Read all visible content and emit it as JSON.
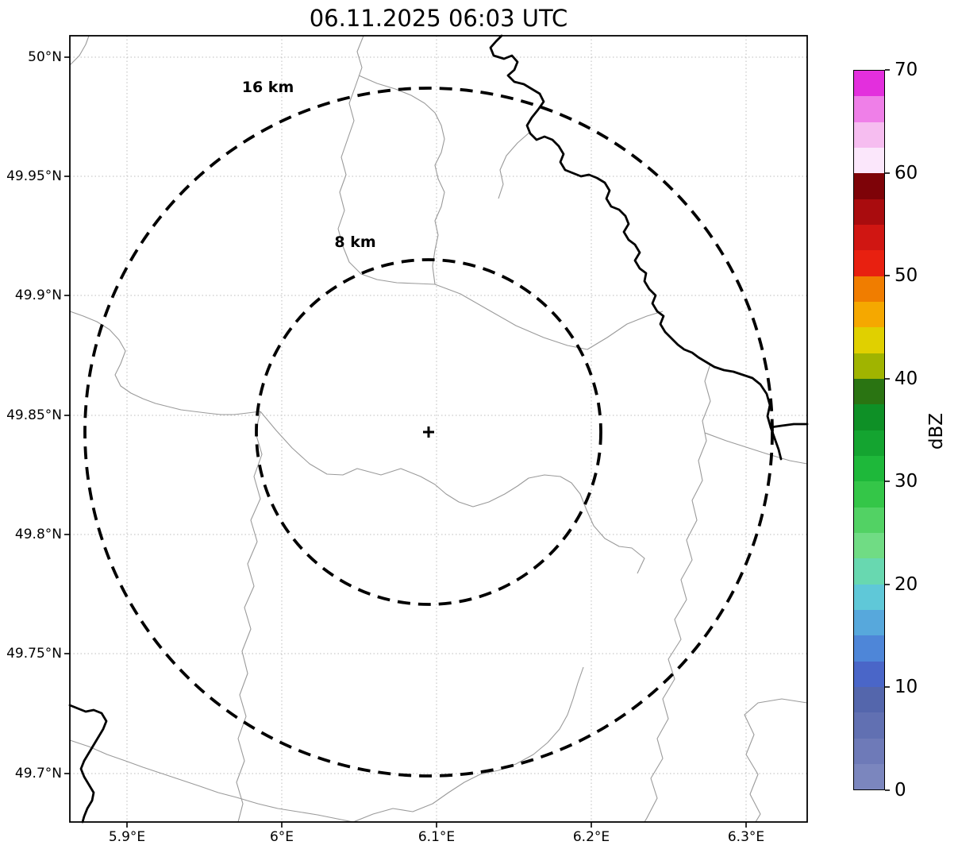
{
  "title": "06.11.2025 06:03 UTC",
  "axes": {
    "x_ticks": [
      "5.9°E",
      "6°E",
      "6.1°E",
      "6.2°E",
      "6.3°E"
    ],
    "y_ticks": [
      "50°N",
      "49.95°N",
      "49.9°N",
      "49.85°N",
      "49.8°N",
      "49.75°N",
      "49.7°N"
    ]
  },
  "range_rings": [
    {
      "label": "16 km"
    },
    {
      "label": "8 km"
    }
  ],
  "marker": {
    "symbol": "+"
  },
  "colorbar": {
    "label": "dBZ",
    "ticks": [
      "0",
      "10",
      "20",
      "30",
      "40",
      "50",
      "60",
      "70"
    ],
    "colors_bottom_to_top": [
      "#7b86be",
      "#6e7ab8",
      "#6170b2",
      "#5466ac",
      "#4a66c8",
      "#4e86d8",
      "#57a8dc",
      "#5fc8d8",
      "#68d8b0",
      "#70dc84",
      "#52d264",
      "#34c648",
      "#1eb83a",
      "#14a430",
      "#0e9026",
      "#2a7412",
      "#a0b400",
      "#e0d000",
      "#f5a800",
      "#f07d00",
      "#e82010",
      "#d01612",
      "#a90c0e",
      "#7e0308",
      "#fbe7fb",
      "#f6bdf0",
      "#ef7fe8",
      "#e32fdd"
    ]
  },
  "colors": {
    "range_ring": "#000000",
    "river": "#000000",
    "admin_boundary": "#9a9a9a",
    "grid": "#bcbcbc"
  }
}
